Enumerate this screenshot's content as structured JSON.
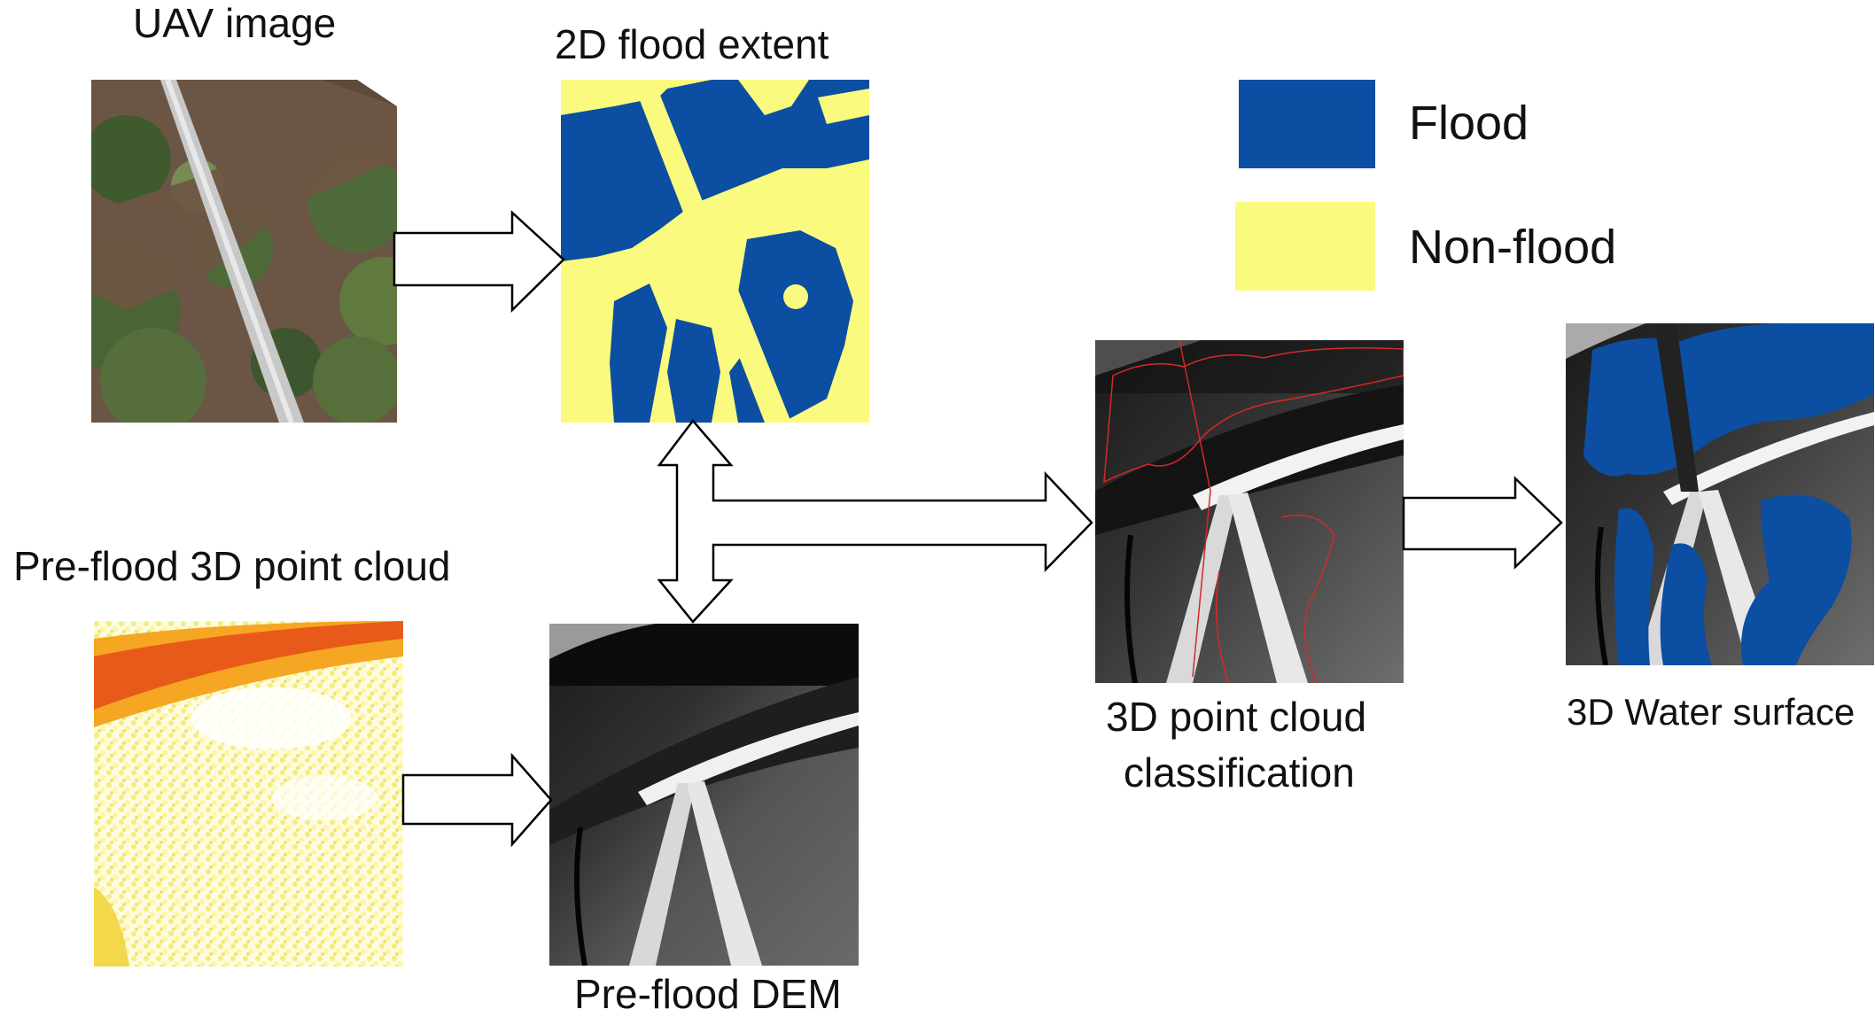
{
  "labels": {
    "uav": "UAV image",
    "flood_extent": "2D flood extent",
    "pre_flood_cloud": "Pre-flood 3D point cloud",
    "pre_flood_dem": "Pre-flood DEM",
    "classification_line1": "3D point cloud",
    "classification_line2": "classification",
    "water_surface": "3D Water surface"
  },
  "legend": [
    {
      "label": "Flood",
      "color": "#0b4ea2"
    },
    {
      "label": "Non-flood",
      "color": "#fafa7f"
    }
  ],
  "colors": {
    "flood": "#0b4ea2",
    "non_flood": "#fafa7f",
    "outline": "#d62828"
  }
}
